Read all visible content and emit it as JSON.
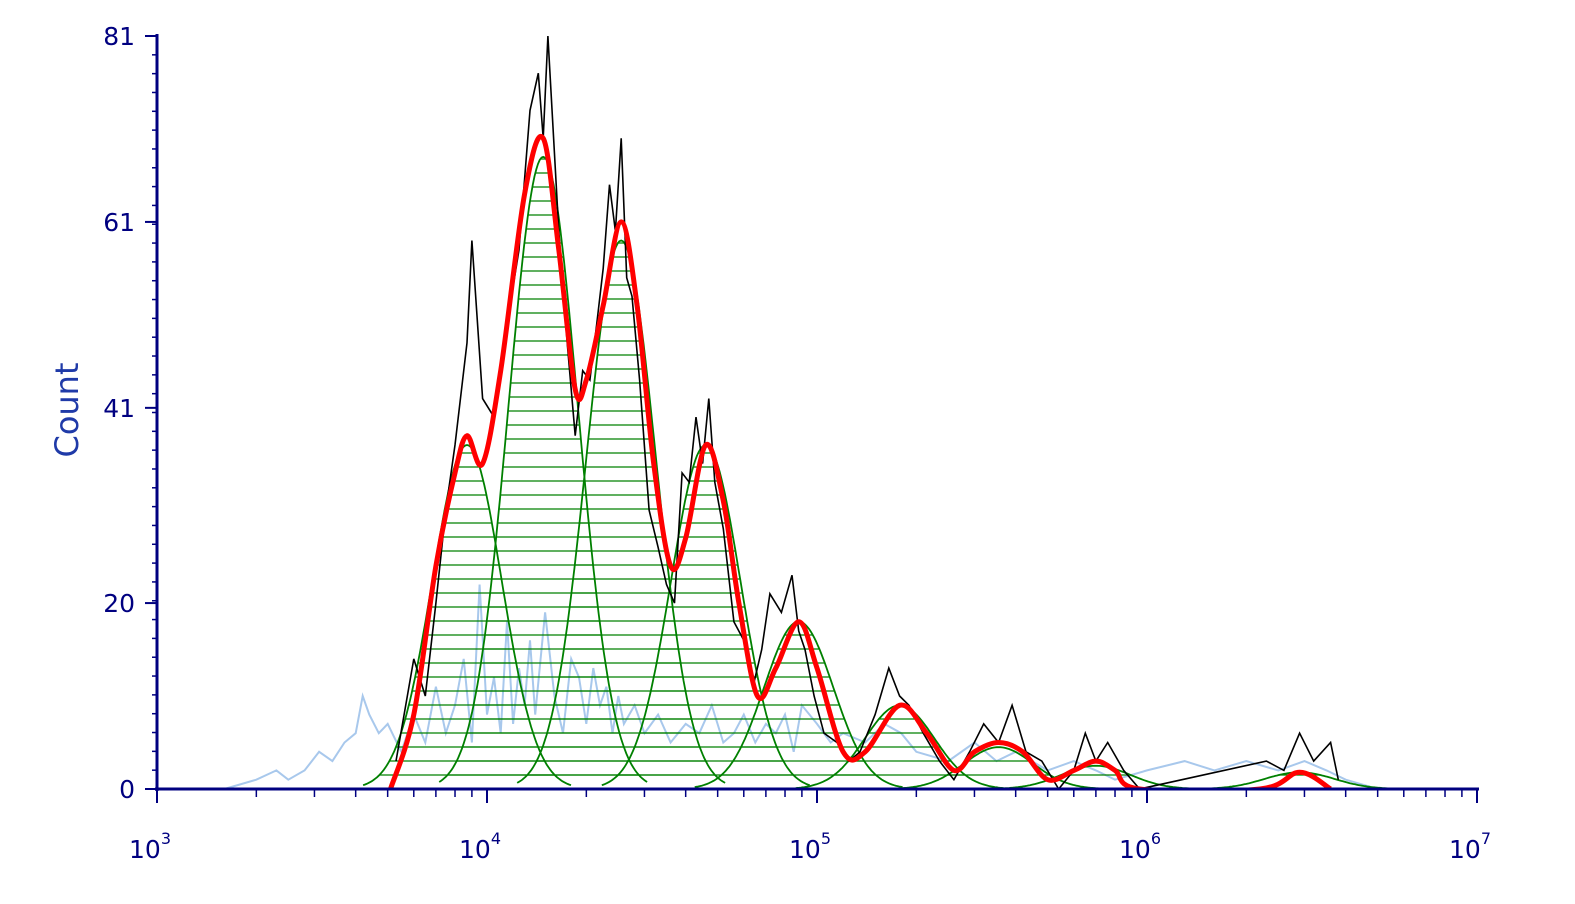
{
  "chart_data": {
    "type": "area",
    "title": "",
    "xlabel": "",
    "ylabel": "Count",
    "xscale": "log",
    "xlim": [
      1000,
      10000000
    ],
    "ylim": [
      0,
      81
    ],
    "x_ticks": [
      {
        "base": "10",
        "exp": "3"
      },
      {
        "base": "10",
        "exp": "4"
      },
      {
        "base": "10",
        "exp": "5"
      },
      {
        "base": "10",
        "exp": "6"
      },
      {
        "base": "10",
        "exp": "7"
      }
    ],
    "y_ticks": [
      "0",
      "20",
      "41",
      "61",
      "81"
    ],
    "grid": false,
    "legend": "none",
    "colors": {
      "axis": "#000080",
      "axis_label": "#1f3aa8",
      "histogram": "#000000",
      "control_histogram": "#a8c8ec",
      "component_fill_lines": "#008000",
      "fit": "#ff0000"
    },
    "series": [
      {
        "role": "fitted components (green)",
        "peaks": [
          {
            "x": 8700,
            "y": 37
          },
          {
            "x": 14800,
            "y": 68
          },
          {
            "x": 25500,
            "y": 59
          },
          {
            "x": 46000,
            "y": 37
          },
          {
            "x": 88000,
            "y": 18
          },
          {
            "x": 178000,
            "y": 9
          },
          {
            "x": 355000,
            "y": 4.5
          },
          {
            "x": 700000,
            "y": 2.5
          },
          {
            "x": 2900000,
            "y": 1.8
          }
        ]
      },
      {
        "role": "fit envelope (red)",
        "x": [
          5100,
          6000,
          7000,
          8000,
          8700,
          9700,
          11000,
          13000,
          14800,
          16500,
          18500,
          20000,
          22500,
          25500,
          28500,
          32000,
          36000,
          40000,
          46000,
          52000,
          58000,
          66000,
          75000,
          88000,
          100000,
          120000,
          140000,
          178000,
          215000,
          260000,
          300000,
          355000,
          420000,
          500000,
          600000,
          700000,
          800000,
          950000,
          2200000,
          2900000,
          3600000
        ],
        "y": [
          0,
          8,
          24,
          34,
          38,
          35,
          45,
          64,
          70,
          58,
          43,
          44,
          52,
          61,
          52,
          35,
          24,
          27,
          37,
          31,
          20,
          10,
          13,
          18,
          13,
          4,
          4,
          9,
          6,
          2,
          4,
          5,
          4,
          1,
          2,
          3,
          2,
          0,
          0,
          1.8,
          0
        ]
      },
      {
        "role": "sample histogram (black)",
        "x": [
          5300,
          6000,
          6500,
          7000,
          7500,
          8000,
          8700,
          9000,
          9700,
          10500,
          11500,
          12500,
          13500,
          14300,
          14800,
          15300,
          16500,
          17500,
          18500,
          19500,
          20500,
          21500,
          22500,
          23500,
          24500,
          25500,
          26500,
          27500,
          29000,
          31000,
          33000,
          35000,
          37000,
          39000,
          41000,
          43000,
          45000,
          47000,
          49000,
          52000,
          56000,
          60000,
          64000,
          68000,
          72000,
          78000,
          84000,
          88000,
          92000,
          98000,
          105000,
          115000,
          125000,
          135000,
          150000,
          165000,
          178000,
          190000,
          210000,
          235000,
          260000,
          290000,
          320000,
          355000,
          390000,
          430000,
          480000,
          540000,
          600000,
          650000,
          700000,
          760000,
          850000,
          950000,
          2300000,
          2600000,
          2900000,
          3200000,
          3600000,
          3800000
        ],
        "y": [
          3,
          14,
          10,
          20,
          30,
          37,
          48,
          59,
          42,
          40,
          50,
          58,
          73,
          77,
          70,
          81,
          60,
          48,
          38,
          45,
          44,
          50,
          56,
          65,
          60,
          70,
          55,
          53,
          44,
          30,
          26,
          22,
          20,
          34,
          33,
          40,
          35,
          42,
          33,
          28,
          18,
          16,
          11,
          15,
          21,
          19,
          23,
          17,
          15,
          10,
          6,
          5,
          3,
          4,
          8,
          13,
          10,
          9,
          6,
          3,
          1,
          4,
          7,
          5,
          9,
          4,
          3,
          0,
          2,
          6,
          3,
          5,
          2,
          0,
          3,
          2,
          6,
          3,
          5,
          1
        ]
      },
      {
        "role": "control histogram (light blue)",
        "x": [
          1600,
          2000,
          2300,
          2500,
          2800,
          3100,
          3400,
          3700,
          4000,
          4200,
          4400,
          4700,
          5000,
          5500,
          6000,
          6500,
          7000,
          7500,
          8000,
          8500,
          9000,
          9500,
          10000,
          10500,
          11000,
          11500,
          12000,
          12500,
          13000,
          13500,
          14000,
          15000,
          16000,
          17000,
          18000,
          19000,
          20000,
          21000,
          22000,
          23000,
          24000,
          25000,
          26000,
          28000,
          30000,
          33000,
          36000,
          40000,
          44000,
          48000,
          52000,
          56000,
          60000,
          65000,
          70000,
          75000,
          80000,
          85000,
          90000,
          100000,
          110000,
          120000,
          140000,
          160000,
          180000,
          200000,
          250000,
          300000,
          350000,
          400000,
          500000,
          600000,
          700000,
          800000,
          1000000,
          1300000,
          1600000,
          2000000,
          2500000,
          3000000,
          3500000,
          4000000,
          5000000
        ],
        "y": [
          0,
          1,
          2,
          1,
          2,
          4,
          3,
          5,
          6,
          10,
          8,
          6,
          7,
          4,
          8,
          5,
          11,
          6,
          9,
          14,
          5,
          22,
          8,
          12,
          6,
          18,
          7,
          13,
          9,
          16,
          8,
          19,
          10,
          6,
          14,
          12,
          7,
          13,
          9,
          11,
          6,
          10,
          7,
          9,
          6,
          8,
          5,
          7,
          6,
          9,
          5,
          6,
          8,
          5,
          7,
          6,
          8,
          4,
          9,
          7,
          5,
          6,
          5,
          7,
          6,
          4,
          3,
          5,
          3,
          4,
          2,
          3,
          2,
          1,
          2,
          3,
          2,
          3,
          2,
          3,
          2,
          1,
          0
        ]
      }
    ]
  }
}
